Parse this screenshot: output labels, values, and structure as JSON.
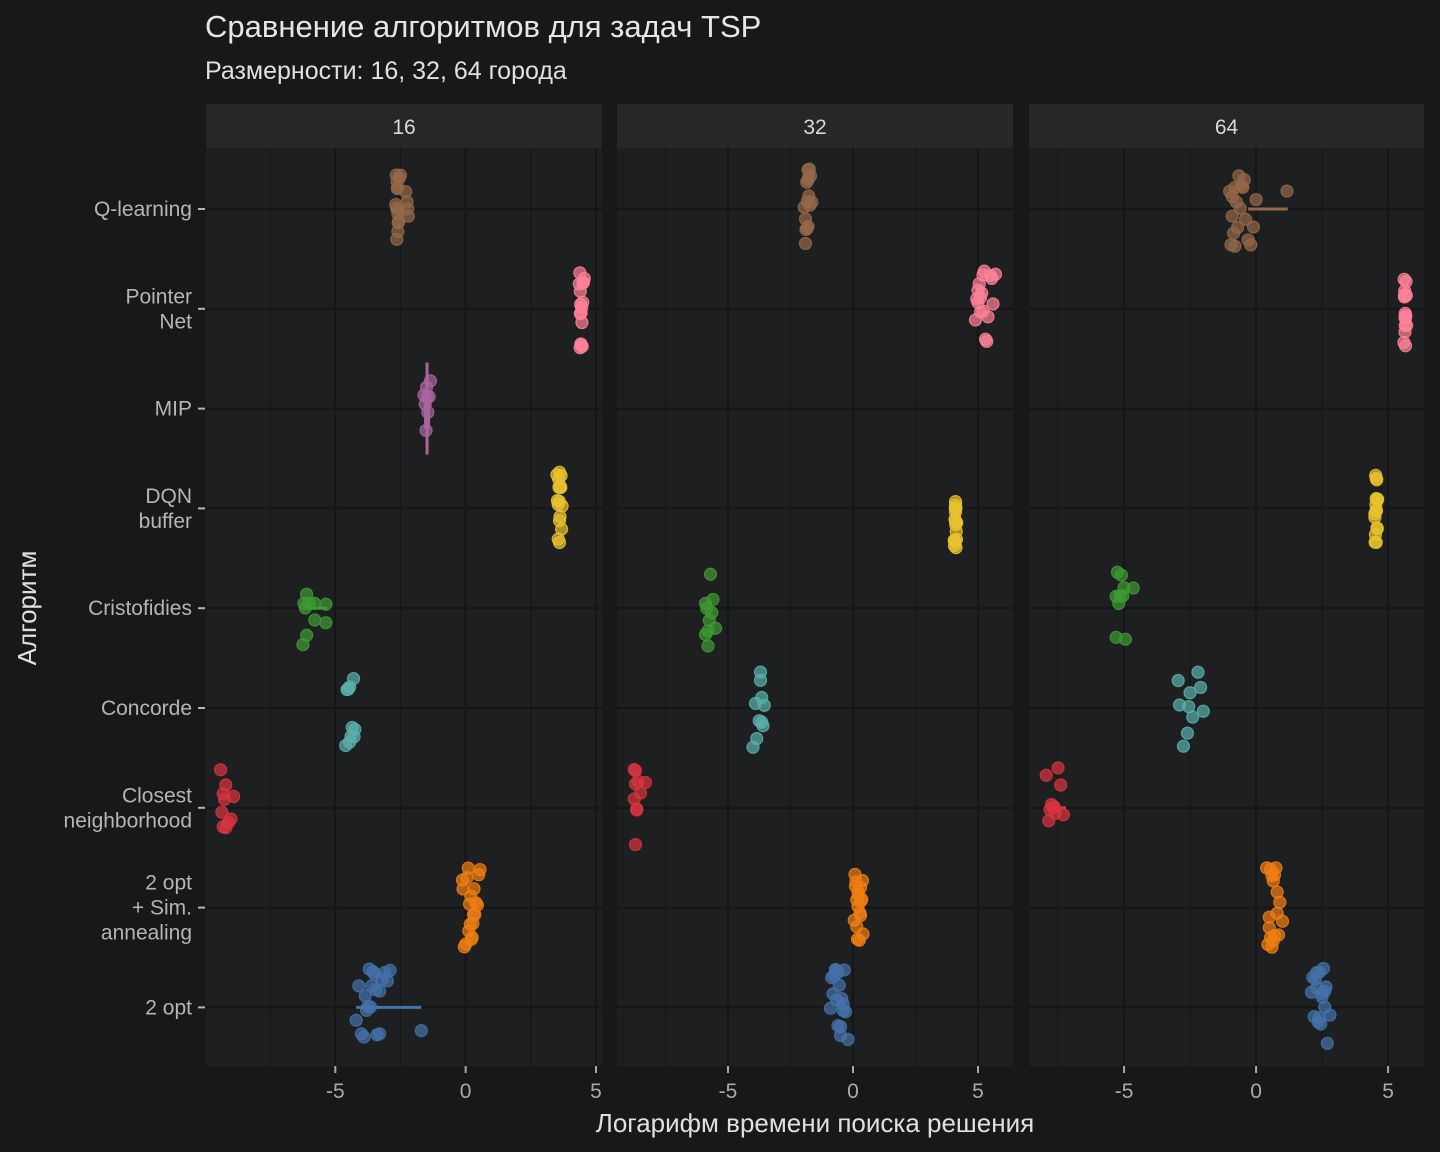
{
  "chart_data": {
    "type": "scatter",
    "title": "Сравнение алгоритмов для задач TSP",
    "subtitle": "Размерности: 16, 32, 64 города",
    "xlabel": "Логарифм времени поиска решения",
    "ylabel": "Алгоритм",
    "grid": true,
    "legend": "none",
    "categories": [
      {
        "label": "Q-learning",
        "color": "#946848"
      },
      {
        "label": "Pointer\nNet",
        "color": "#ff8197"
      },
      {
        "label": "MIP",
        "color": "#a8659e"
      },
      {
        "label": "DQN\nbuffer",
        "color": "#e8c22f"
      },
      {
        "label": "Cristofidies",
        "color": "#3f9a34"
      },
      {
        "label": "Concorde",
        "color": "#5ab0ad"
      },
      {
        "label": "Closest\nneighborhood",
        "color": "#d8343f"
      },
      {
        "label": "2 opt\n+ Sim.\nannealing",
        "color": "#f07f13"
      },
      {
        "label": "2 opt",
        "color": "#4472aa"
      }
    ],
    "facets": [
      {
        "label": "16",
        "xlim": [
          -9.96,
          5.23
        ],
        "xticks": [
          -5,
          0,
          5
        ],
        "groups": [
          {
            "values": [
              -2.65,
              -2.6,
              -2.55,
              -2.62,
              -2.68,
              -2.58,
              -2.5,
              -2.64,
              -2.2,
              -2.25,
              -2.3,
              -2.6,
              -2.57,
              -2.66,
              -2.22,
              -2.61,
              -2.59,
              -2.63
            ]
          },
          {
            "values": [
              4.4,
              4.45,
              4.5,
              4.38,
              4.42,
              4.47,
              4.55,
              4.41,
              4.44,
              4.36,
              4.49,
              4.43,
              4.46,
              4.4,
              4.52,
              4.39
            ]
          },
          {
            "values": [
              -1.55,
              -1.5,
              -1.45,
              -1.6,
              -1.35,
              -1.52,
              -1.48,
              -1.4
            ],
            "vline": true
          },
          {
            "values": [
              3.5,
              3.6,
              3.65,
              3.55,
              3.7,
              3.58,
              3.62,
              3.52,
              3.68,
              3.6,
              3.57,
              3.63,
              3.55,
              3.66,
              3.6,
              3.59
            ]
          },
          {
            "values": [
              -5.36,
              -5.79,
              -6.24,
              -6.1,
              -5.8,
              -6.15,
              -6.2,
              -6.1,
              -5.36,
              -6.0
            ],
            "line": [
              -6.2,
              -5.3
            ]
          },
          {
            "values": [
              -4.5,
              -4.45,
              -4.35,
              -4.3,
              -4.55,
              -4.25,
              -4.4,
              -4.6,
              -4.45,
              -4.28
            ]
          },
          {
            "values": [
              -9.2,
              -9.0,
              -9.35,
              -9.4,
              -9.3,
              -8.9,
              -9.2,
              -9.25,
              -9.1,
              -9.3
            ]
          },
          {
            "values": [
              -0.1,
              0.0,
              0.1,
              0.2,
              0.3,
              0.4,
              0.5,
              -0.05,
              0.15,
              0.25,
              0.35,
              0.45,
              0.05,
              0.12,
              0.22,
              0.32,
              0.55,
              -0.12,
              0.18,
              0.28
            ]
          },
          {
            "values": [
              -4.2,
              -3.9,
              -3.6,
              -3.3,
              -3.0,
              -2.9,
              -3.5,
              -3.7,
              -3.8,
              -4.0,
              -3.4,
              -3.2,
              -3.65,
              -3.55,
              -3.45,
              -3.75,
              -3.1,
              -3.85,
              -4.1,
              -3.3,
              -1.7
            ],
            "line": [
              -4.2,
              -1.7
            ]
          }
        ]
      },
      {
        "label": "32",
        "xlim": [
          -9.44,
          6.4
        ],
        "xticks": [
          -5,
          0,
          5
        ],
        "groups": [
          {
            "values": [
              -1.8,
              -1.85,
              -1.75,
              -1.9,
              -1.7,
              -1.82,
              -1.78,
              -1.95,
              -1.65,
              -1.8,
              -1.88,
              -1.72,
              -1.83,
              -1.77,
              -1.9,
              -1.8
            ]
          },
          {
            "values": [
              4.9,
              5.0,
              5.1,
              5.2,
              5.3,
              5.5,
              5.7,
              5.05,
              5.15,
              5.25,
              5.4,
              5.6,
              4.95,
              5.1,
              5.35,
              5.2,
              5.0,
              5.55
            ]
          },
          {
            "values": []
          },
          {
            "values": [
              4.05,
              4.1,
              4.12,
              4.08,
              4.15,
              4.1,
              4.06,
              4.14,
              4.1,
              4.09,
              4.11,
              4.13,
              4.07,
              4.1,
              4.12,
              4.08
            ]
          },
          {
            "values": [
              -5.9,
              -5.9,
              -5.7,
              -5.8,
              -5.65,
              -5.75,
              -5.6,
              -5.5,
              -5.8,
              -5.85
            ]
          },
          {
            "values": [
              -3.9,
              -3.85,
              -3.6,
              -3.7,
              -3.65,
              -3.55,
              -4.0,
              -3.75,
              -3.7,
              -3.65
            ]
          },
          {
            "values": [
              -8.6,
              -8.7,
              -8.65,
              -8.5,
              -8.75,
              -8.7,
              -8.65,
              -8.7,
              -8.75,
              -8.3
            ]
          },
          {
            "values": [
              0.05,
              0.1,
              0.15,
              0.2,
              0.25,
              0.3,
              0.35,
              0.4,
              0.12,
              0.22,
              0.32,
              0.18,
              0.28,
              0.08,
              0.38,
              0.2,
              0.3,
              0.15
            ]
          },
          {
            "values": [
              -0.9,
              -0.8,
              -0.7,
              -0.6,
              -0.5,
              -0.4,
              -0.3,
              -0.2,
              -0.75,
              -0.65,
              -0.55,
              -0.45,
              -0.35,
              -0.85,
              -0.6,
              -0.5,
              -0.7,
              -0.4
            ]
          }
        ]
      },
      {
        "label": "64",
        "xlim": [
          -8.6,
          6.36
        ],
        "xticks": [
          -5,
          0,
          5
        ],
        "groups": [
          {
            "values": [
              -1.0,
              -0.9,
              -0.8,
              -0.7,
              -0.6,
              -0.5,
              -0.4,
              -0.3,
              -0.2,
              0.0,
              -0.95,
              -0.85,
              -0.75,
              -0.65,
              -0.55,
              -0.45,
              -0.1,
              -0.9,
              -0.8,
              1.17
            ],
            "line": [
              -0.3,
              1.2
            ]
          },
          {
            "values": [
              5.62,
              5.65,
              5.68,
              5.6,
              5.66,
              5.64,
              5.7,
              5.63,
              5.67,
              5.61,
              5.65,
              5.66,
              5.64,
              5.69,
              5.62,
              5.65
            ]
          },
          {
            "values": []
          },
          {
            "values": [
              4.5,
              4.55,
              4.6,
              4.52,
              4.58,
              4.54,
              4.56,
              4.5,
              4.6,
              4.53,
              4.57,
              4.55,
              4.51,
              4.59,
              4.55,
              4.54
            ]
          },
          {
            "values": [
              -5.3,
              -5.2,
              -5.1,
              -4.95,
              -5.15,
              -4.65,
              -5.0,
              -5.25,
              -5.3,
              -5.05
            ]
          },
          {
            "values": [
              -2.75,
              -2.6,
              -2.4,
              -2.0,
              -2.2,
              -2.9,
              -2.95,
              -2.55,
              -2.5,
              -2.1
            ]
          },
          {
            "values": [
              -7.8,
              -7.6,
              -7.4,
              -7.3,
              -7.85,
              -7.7,
              -7.95,
              -7.5,
              -7.65,
              -7.75
            ],
            "line": [
              -7.9,
              -7.2
            ]
          },
          {
            "values": [
              0.4,
              0.5,
              0.6,
              0.7,
              0.8,
              0.9,
              1.0,
              0.45,
              0.55,
              0.65,
              0.75,
              0.85,
              0.6,
              0.7,
              0.5,
              0.8,
              0.65,
              0.55
            ]
          },
          {
            "values": [
              2.1,
              2.2,
              2.3,
              2.4,
              2.5,
              2.6,
              2.7,
              2.8,
              2.25,
              2.35,
              2.45,
              2.55,
              2.65,
              2.15,
              2.5,
              2.4,
              2.3,
              2.6
            ]
          }
        ]
      }
    ]
  }
}
